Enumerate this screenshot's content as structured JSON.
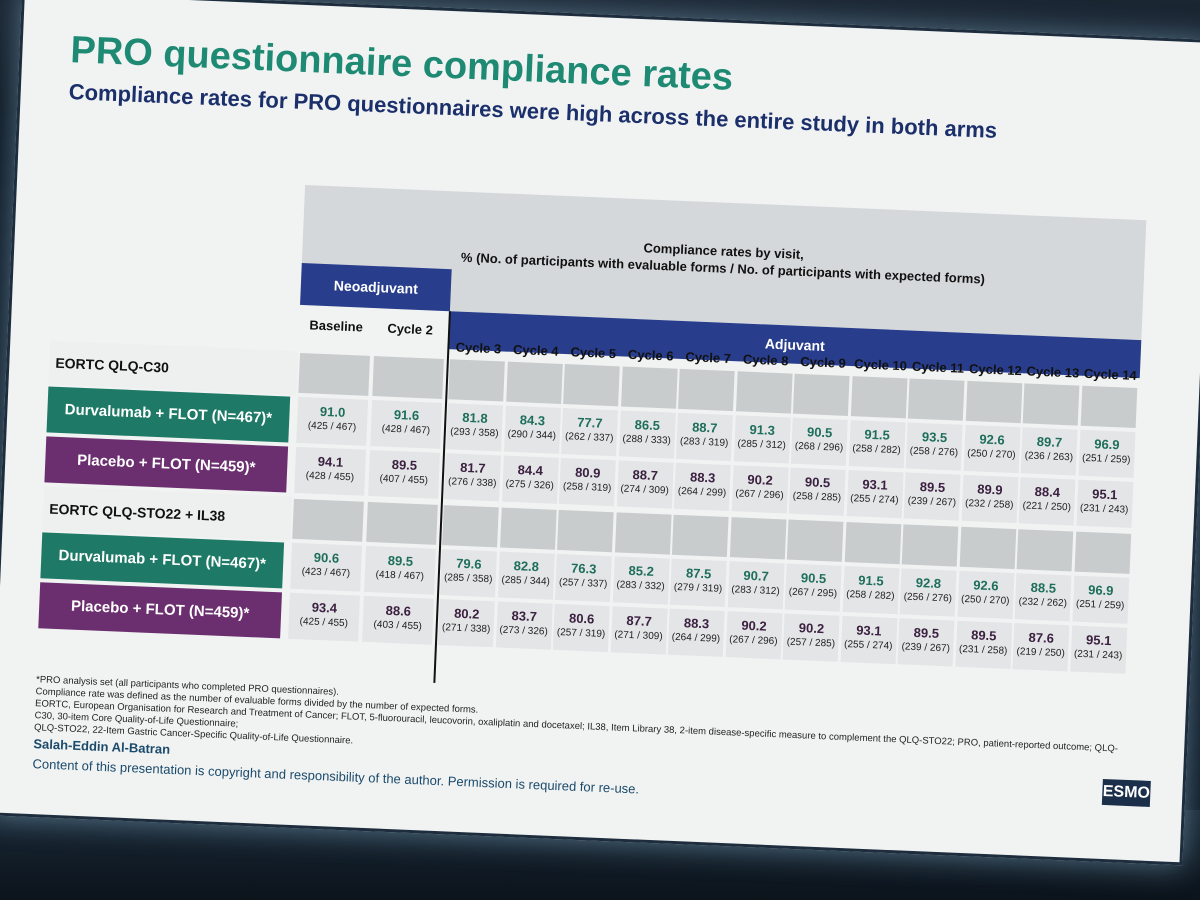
{
  "slide": {
    "title": "PRO questionnaire compliance rates",
    "subtitle": "Compliance rates for PRO questionnaires were high across the entire study in both arms",
    "header_line1": "Compliance rates by visit,",
    "header_line2": "% (No. of participants with evaluable forms / No. of participants with expected forms)",
    "neoadjuvant": "Neoadjuvant",
    "adjuvant": "Adjuvant",
    "visits": [
      "Baseline",
      "Cycle 2",
      "Cycle 3",
      "Cycle 4",
      "Cycle 5",
      "Cycle 6",
      "Cycle 7",
      "Cycle 8",
      "Cycle 9",
      "Cycle 10",
      "Cycle 11",
      "Cycle 12",
      "Cycle 13",
      "Cycle 14"
    ],
    "sections": [
      {
        "name": "EORTC QLQ-C30",
        "arms": [
          {
            "label": "Durvalumab + FLOT (N=467)*",
            "type": "d",
            "values": [
              "91.0",
              "91.6",
              "81.8",
              "84.3",
              "77.7",
              "86.5",
              "88.7",
              "91.3",
              "90.5",
              "91.5",
              "93.5",
              "92.6",
              "89.7",
              "96.9"
            ],
            "counts": [
              "(425 / 467)",
              "(428 / 467)",
              "(293 / 358)",
              "(290 / 344)",
              "(262 / 337)",
              "(288 / 333)",
              "(283 / 319)",
              "(285 / 312)",
              "(268 / 296)",
              "(258 / 282)",
              "(258 / 276)",
              "(250 / 270)",
              "(236 / 263)",
              "(251 / 259)"
            ]
          },
          {
            "label": "Placebo + FLOT (N=459)*",
            "type": "p",
            "values": [
              "94.1",
              "89.5",
              "81.7",
              "84.4",
              "80.9",
              "88.7",
              "88.3",
              "90.2",
              "90.5",
              "93.1",
              "89.5",
              "89.9",
              "88.4",
              "95.1"
            ],
            "counts": [
              "(428 / 455)",
              "(407 / 455)",
              "(276 / 338)",
              "(275 / 326)",
              "(258 / 319)",
              "(274 / 309)",
              "(264 / 299)",
              "(267 / 296)",
              "(258 / 285)",
              "(255 / 274)",
              "(239 / 267)",
              "(232 / 258)",
              "(221 / 250)",
              "(231 / 243)"
            ]
          }
        ]
      },
      {
        "name": "EORTC QLQ-STO22 + IL38",
        "arms": [
          {
            "label": "Durvalumab + FLOT (N=467)*",
            "type": "d",
            "values": [
              "90.6",
              "89.5",
              "79.6",
              "82.8",
              "76.3",
              "85.2",
              "87.5",
              "90.7",
              "90.5",
              "91.5",
              "92.8",
              "92.6",
              "88.5",
              "96.9"
            ],
            "counts": [
              "(423 / 467)",
              "(418 / 467)",
              "(285 / 358)",
              "(285 / 344)",
              "(257 / 337)",
              "(283 / 332)",
              "(279 / 319)",
              "(283 / 312)",
              "(267 / 295)",
              "(258 / 282)",
              "(256 / 276)",
              "(250 / 270)",
              "(232 / 262)",
              "(251 / 259)"
            ]
          },
          {
            "label": "Placebo + FLOT (N=459)*",
            "type": "p",
            "values": [
              "93.4",
              "88.6",
              "80.2",
              "83.7",
              "80.6",
              "87.7",
              "88.3",
              "90.2",
              "90.2",
              "93.1",
              "89.5",
              "89.5",
              "87.6",
              "95.1"
            ],
            "counts": [
              "(425 / 455)",
              "(403 / 455)",
              "(271 / 338)",
              "(273 / 326)",
              "(257 / 319)",
              "(271 / 309)",
              "(264 / 299)",
              "(267 / 296)",
              "(257 / 285)",
              "(255 / 274)",
              "(239 / 267)",
              "(231 / 258)",
              "(219 / 250)",
              "(231 / 243)"
            ]
          }
        ]
      }
    ],
    "footnotes": [
      "*PRO analysis set (all participants who completed PRO questionnaires).",
      "Compliance rate was defined as the number of evaluable forms divided by the number of expected forms.",
      "EORTC, European Organisation for Research and Treatment of Cancer; FLOT, 5-fluorouracil, leucovorin, oxaliplatin and docetaxel; IL38, Item Library 38, 2-item disease-specific measure to complement the QLQ-STO22; PRO, patient-reported outcome; QLQ-C30, 30-item Core Quality-of-Life Questionnaire;",
      "QLQ-STO22, 22-Item Gastric Cancer-Specific Quality-of-Life Questionnaire."
    ],
    "author": "Salah-Eddin Al-Batran",
    "copyright": "Content of this presentation is copyright and responsibility of the author. Permission is required for re-use.",
    "logo": "ESMO"
  }
}
